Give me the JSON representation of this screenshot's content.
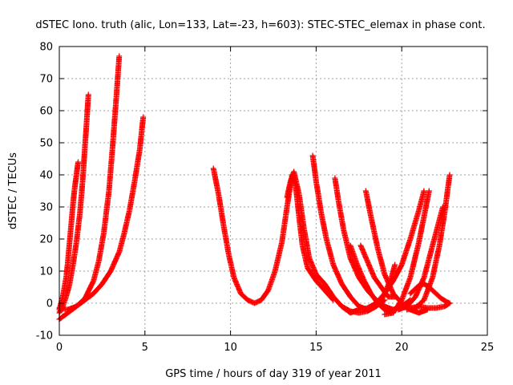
{
  "chart_data": {
    "type": "scatter",
    "title": "dSTEC Iono. truth (alic, Lon=133, Lat=-23, h=603): STEC-STEC_elemax in phase cont.",
    "xlabel": "GPS time / hours of day 319 of year 2011",
    "ylabel": "dSTEC  / TECUs",
    "xlim": [
      0,
      25
    ],
    "ylim": [
      -10,
      80
    ],
    "xticks": [
      0,
      5,
      10,
      15,
      20,
      25
    ],
    "yticks": [
      -10,
      0,
      10,
      20,
      30,
      40,
      50,
      60,
      70,
      80
    ],
    "grid": true,
    "marker": "+",
    "color": "#ff0000",
    "series": [
      {
        "x": [
          0.0,
          0.2,
          0.4,
          0.5,
          0.6,
          0.7,
          0.8,
          0.9,
          1.0,
          1.1
        ],
        "y": [
          -2.0,
          2.0,
          8.0,
          13.0,
          19.0,
          25.0,
          31.0,
          36.0,
          40.0,
          44.0
        ]
      },
      {
        "x": [
          0.0,
          0.2,
          0.4,
          0.6,
          0.8,
          1.0,
          1.2,
          1.3,
          1.4,
          1.5,
          1.6,
          1.7
        ],
        "y": [
          -3.0,
          -1.0,
          2.0,
          6.0,
          12.0,
          19.0,
          28.0,
          34.0,
          41.0,
          49.0,
          57.0,
          65.0
        ]
      },
      {
        "x": [
          0.0,
          0.5,
          1.0,
          1.5,
          2.0,
          2.3,
          2.6,
          2.9,
          3.1,
          3.3,
          3.5
        ],
        "y": [
          -1.5,
          -2.0,
          -1.0,
          1.5,
          7.0,
          13.0,
          22.0,
          35.0,
          48.0,
          62.0,
          77.0
        ]
      },
      {
        "x": [
          0.0,
          0.5,
          1.0,
          1.5,
          2.0,
          2.5,
          3.0,
          3.5,
          3.8,
          4.1,
          4.4,
          4.7,
          4.9
        ],
        "y": [
          -5.0,
          -3.0,
          -1.0,
          1.0,
          3.0,
          6.0,
          10.0,
          16.0,
          22.0,
          29.0,
          38.0,
          48.0,
          58.0
        ]
      },
      {
        "x": [
          9.0,
          9.3,
          9.6,
          9.9,
          10.2,
          10.6,
          11.0,
          11.4,
          11.8,
          12.2,
          12.6,
          13.0,
          13.3,
          13.6,
          13.8,
          14.0,
          14.2,
          14.5,
          15.0,
          15.5,
          16.0
        ],
        "y": [
          42.0,
          34.0,
          24.0,
          15.0,
          8.0,
          3.0,
          1.0,
          0.0,
          1.0,
          4.0,
          10.0,
          19.0,
          30.0,
          40.0,
          37.0,
          27.0,
          18.0,
          11.0,
          7.0,
          4.0,
          1.0
        ]
      },
      {
        "x": [
          13.3,
          13.5,
          13.7,
          14.0,
          14.3,
          14.6,
          15.0,
          15.5,
          16.0,
          16.5,
          17.0,
          17.5
        ],
        "y": [
          33.0,
          38.0,
          41.0,
          34.0,
          23.0,
          14.0,
          9.0,
          6.0,
          2.0,
          -1.0,
          -3.0,
          -2.0
        ]
      },
      {
        "x": [
          14.8,
          15.0,
          15.3,
          15.6,
          16.0,
          16.5,
          17.0,
          17.5,
          18.0,
          18.5,
          19.0
        ],
        "y": [
          46.0,
          38.0,
          28.0,
          20.0,
          12.0,
          6.0,
          2.0,
          -1.0,
          -2.0,
          -1.0,
          1.0
        ]
      },
      {
        "x": [
          16.1,
          16.3,
          16.6,
          17.0,
          17.5,
          18.0,
          18.5,
          19.0,
          19.5,
          20.0,
          20.5
        ],
        "y": [
          39.0,
          32.0,
          23.0,
          14.0,
          8.0,
          4.0,
          1.0,
          -1.0,
          -2.0,
          -1.0,
          1.0
        ]
      },
      {
        "x": [
          17.0,
          17.4,
          17.8,
          18.2,
          18.6,
          19.0,
          19.4
        ],
        "y": [
          18.0,
          12.0,
          7.0,
          3.0,
          0.0,
          -2.0,
          -3.0
        ]
      },
      {
        "x": [
          17.6,
          18.0,
          18.4,
          18.8,
          19.2,
          19.6
        ],
        "y": [
          18.0,
          13.0,
          8.0,
          5.0,
          2.0,
          2.0
        ]
      },
      {
        "x": [
          17.9,
          18.2,
          18.6,
          19.0,
          19.5,
          20.0,
          20.5,
          21.0,
          21.5
        ],
        "y": [
          35.0,
          27.0,
          17.0,
          9.0,
          3.0,
          0.0,
          -2.0,
          -3.0,
          -2.0
        ]
      },
      {
        "x": [
          16.5,
          17.0,
          17.5,
          18.0,
          18.5,
          19.0,
          19.4,
          19.6
        ],
        "y": [
          -1.0,
          -2.5,
          -3.0,
          -2.5,
          -1.0,
          3.0,
          8.0,
          12.0
        ]
      },
      {
        "x": [
          17.5,
          18.0,
          18.5,
          19.0,
          19.5,
          20.0,
          20.5,
          21.0,
          21.3
        ],
        "y": [
          -2.0,
          -1.5,
          0.0,
          3.0,
          7.0,
          12.0,
          20.0,
          29.0,
          35.0
        ]
      },
      {
        "x": [
          19.0,
          19.5,
          20.0,
          20.5,
          21.0,
          21.3,
          21.6
        ],
        "y": [
          -3.5,
          -3.0,
          1.0,
          8.0,
          19.0,
          27.0,
          35.0
        ]
      },
      {
        "x": [
          19.8,
          20.3,
          20.8,
          21.3,
          21.8,
          22.1,
          22.4
        ],
        "y": [
          -2.0,
          -1.0,
          2.0,
          8.0,
          18.0,
          24.0,
          30.0
        ]
      },
      {
        "x": [
          20.3,
          20.8,
          21.3,
          21.8,
          22.2,
          22.5,
          22.8
        ],
        "y": [
          -2.0,
          -1.5,
          1.0,
          8.0,
          18.0,
          28.0,
          40.0
        ]
      },
      {
        "x": [
          20.0,
          20.5,
          21.0,
          21.5,
          22.0,
          22.5,
          22.8
        ],
        "y": [
          -1.0,
          -1.5,
          -1.0,
          -1.5,
          -1.5,
          -1.0,
          0.0
        ]
      },
      {
        "x": [
          20.5,
          21.0,
          21.3,
          21.6,
          22.0,
          22.3,
          22.6,
          22.8
        ],
        "y": [
          3.0,
          5.5,
          6.0,
          5.0,
          3.0,
          1.5,
          0.5,
          0.0
        ]
      }
    ]
  }
}
